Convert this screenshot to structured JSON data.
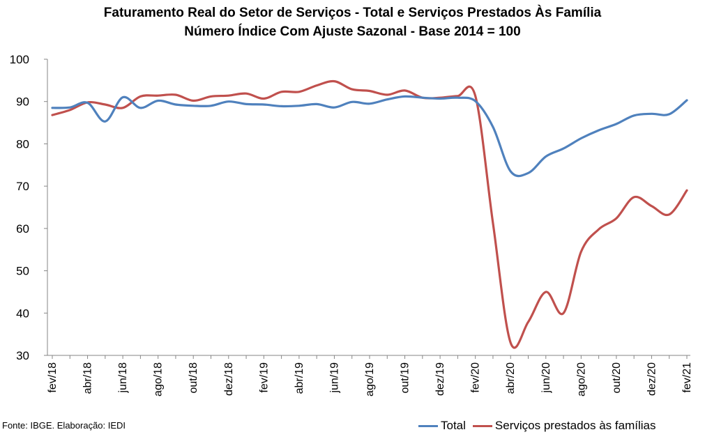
{
  "chart_data": {
    "type": "line",
    "title": "Faturamento Real do Setor de Serviços - Total e Serviços Prestados Às Família",
    "subtitle": "Número Índice Com Ajuste Sazonal - Base 2014 = 100",
    "xlabel": "",
    "ylabel": "",
    "ylim": [
      30,
      100
    ],
    "yticks": [
      30,
      40,
      50,
      60,
      70,
      80,
      90,
      100
    ],
    "grid": false,
    "legend": "bottom-right",
    "x": [
      "fev/18",
      "mar/18",
      "abr/18",
      "mai/18",
      "jun/18",
      "jul/18",
      "ago/18",
      "set/18",
      "out/18",
      "nov/18",
      "dez/18",
      "jan/19",
      "fev/19",
      "mar/19",
      "abr/19",
      "mai/19",
      "jun/19",
      "jul/19",
      "ago/19",
      "set/19",
      "out/19",
      "nov/19",
      "dez/19",
      "jan/20",
      "fev/20",
      "mar/20",
      "abr/20",
      "mai/20",
      "jun/20",
      "jul/20",
      "ago/20",
      "set/20",
      "out/20",
      "nov/20",
      "dez/20",
      "jan/21",
      "fev/21"
    ],
    "xtick_labels": [
      "fev/18",
      "abr/18",
      "jun/18",
      "ago/18",
      "out/18",
      "dez/18",
      "fev/19",
      "abr/19",
      "jun/19",
      "ago/19",
      "out/19",
      "dez/19",
      "fev/20",
      "abr/20",
      "jun/20",
      "ago/20",
      "out/20",
      "dez/20",
      "fev/21"
    ],
    "series": [
      {
        "name": "Total",
        "color": "#4f81bd",
        "values": [
          88.5,
          88.6,
          89.7,
          85.3,
          91.0,
          88.5,
          90.2,
          89.3,
          89.0,
          89.0,
          90.0,
          89.4,
          89.3,
          88.9,
          89.0,
          89.4,
          88.6,
          89.9,
          89.5,
          90.5,
          91.2,
          90.9,
          90.7,
          90.9,
          90.1,
          84.0,
          73.5,
          73.1,
          77.0,
          78.9,
          81.3,
          83.2,
          84.7,
          86.7,
          87.1,
          87.0,
          90.3
        ]
      },
      {
        "name": "Serviços prestados às famílias",
        "color": "#c0504d",
        "values": [
          86.8,
          88.0,
          89.8,
          89.3,
          88.5,
          91.2,
          91.4,
          91.6,
          90.2,
          91.2,
          91.4,
          91.9,
          90.7,
          92.3,
          92.3,
          93.8,
          94.8,
          92.9,
          92.5,
          91.6,
          92.6,
          90.9,
          90.9,
          91.3,
          91.3,
          61.3,
          33.0,
          37.9,
          45.0,
          40.0,
          54.5,
          59.8,
          62.4,
          67.4,
          65.3,
          63.3,
          69.0
        ]
      }
    ]
  },
  "source_note": "Fonte: IBGE. Elaboração: IEDI"
}
